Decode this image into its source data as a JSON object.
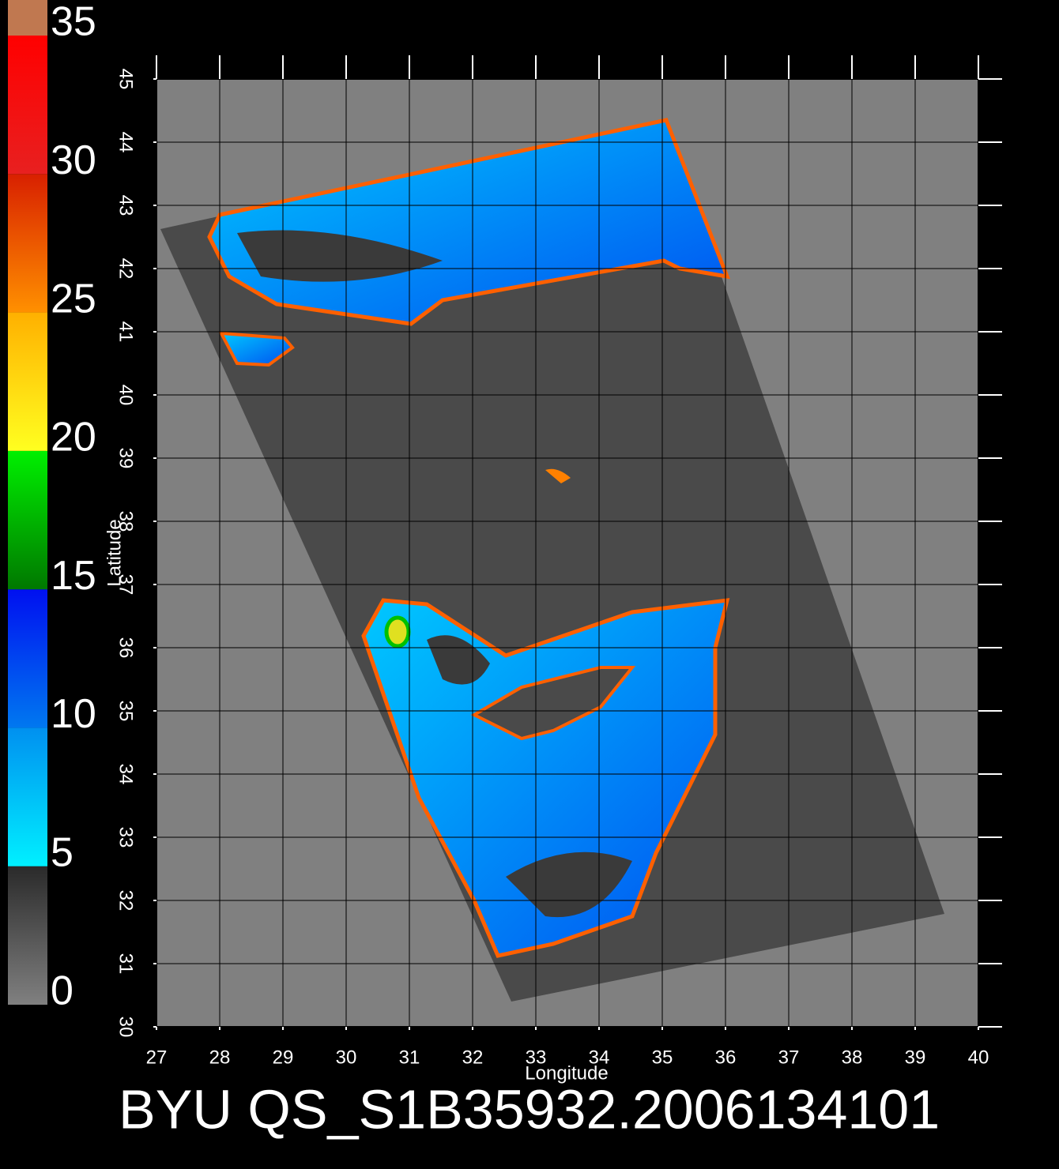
{
  "colorbar": {
    "lim": [
      0,
      35
    ],
    "ticks": [
      0,
      5,
      10,
      15,
      20,
      25,
      30,
      35
    ],
    "colors": [
      [
        "#808080",
        "#2a2a2a"
      ],
      [
        "#00f0ff",
        "#0090f0"
      ],
      [
        "#0078f0",
        "#0010f0"
      ],
      [
        "#007800",
        "#00f000"
      ],
      [
        "#ffff20",
        "#ffb000"
      ],
      [
        "#ff9000",
        "#d82000"
      ],
      [
        "#e82020",
        "#ff0000"
      ]
    ]
  },
  "map": {
    "xlim": [
      27,
      40
    ],
    "ylim": [
      30,
      45
    ],
    "xticks": [
      27,
      28,
      29,
      30,
      31,
      32,
      33,
      34,
      35,
      36,
      37,
      38,
      39,
      40
    ],
    "yticks": [
      30,
      31,
      32,
      33,
      34,
      35,
      36,
      37,
      38,
      39,
      40,
      41,
      42,
      43,
      44,
      45
    ],
    "xlabel": "Longitude",
    "ylabel": "Latitude",
    "grid": true
  },
  "title": "BYU QS_S1B35932.2006134101"
}
